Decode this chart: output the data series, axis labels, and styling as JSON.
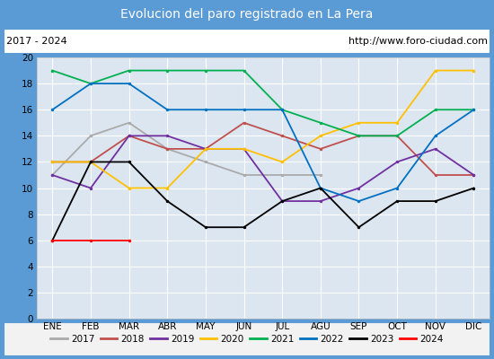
{
  "title": "Evolucion del paro registrado en La Pera",
  "title_color": "#ffffff",
  "title_bg": "#5b9bd5",
  "subtitle_left": "2017 - 2024",
  "subtitle_right": "http://www.foro-ciudad.com",
  "months": [
    "ENE",
    "FEB",
    "MAR",
    "ABR",
    "MAY",
    "JUN",
    "JUL",
    "AGU",
    "SEP",
    "OCT",
    "NOV",
    "DIC"
  ],
  "ylim": [
    0,
    20
  ],
  "yticks": [
    0,
    2,
    4,
    6,
    8,
    10,
    12,
    14,
    16,
    18,
    20
  ],
  "series_colors": {
    "2017": "#aaaaaa",
    "2018": "#c0504d",
    "2019": "#7030a0",
    "2020": "#ffc000",
    "2021": "#00b050",
    "2022": "#0070c0",
    "2023": "#000000",
    "2024": "#ff0000"
  },
  "series_data": {
    "2017": [
      11,
      14,
      15,
      13,
      12,
      11,
      11,
      11,
      null,
      null,
      null,
      null
    ],
    "2018": [
      12,
      12,
      14,
      13,
      13,
      15,
      14,
      13,
      14,
      14,
      11,
      11
    ],
    "2019": [
      11,
      10,
      14,
      14,
      13,
      13,
      9,
      9,
      10,
      12,
      13,
      11
    ],
    "2020": [
      12,
      12,
      10,
      10,
      13,
      13,
      12,
      14,
      15,
      15,
      19,
      19
    ],
    "2021": [
      19,
      18,
      19,
      19,
      19,
      19,
      16,
      15,
      14,
      14,
      16,
      16
    ],
    "2022": [
      16,
      18,
      18,
      16,
      16,
      16,
      16,
      10,
      9,
      10,
      14,
      16
    ],
    "2023": [
      6,
      12,
      12,
      9,
      7,
      7,
      9,
      10,
      7,
      9,
      9,
      10
    ],
    "2024": [
      6,
      6,
      6,
      null,
      null,
      null,
      null,
      null,
      null,
      null,
      null,
      null
    ]
  },
  "plot_bg": "#dce6f1",
  "grid_color": "#ffffff",
  "border_color": "#5b9bd5",
  "legend_bg": "#f2f2f2"
}
